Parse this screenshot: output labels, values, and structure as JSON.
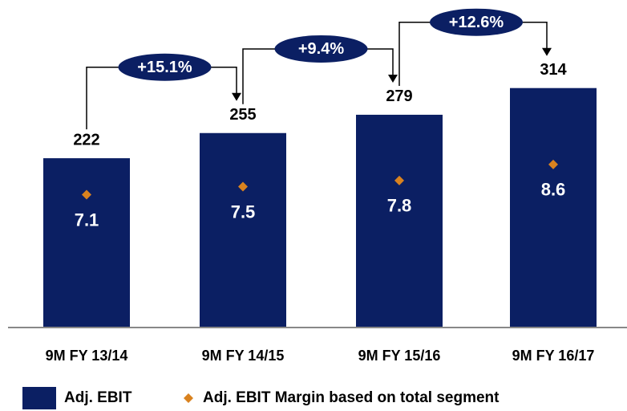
{
  "chart_data": {
    "type": "bar",
    "categories": [
      "9M FY 13/14",
      "9M FY 14/15",
      "9M FY 15/16",
      "9M FY 16/17"
    ],
    "series": [
      {
        "name": "Adj. EBIT",
        "color": "#0b1f63",
        "values": [
          222,
          255,
          279,
          314
        ]
      },
      {
        "name": "Adj. EBIT Margin based on total segment",
        "color": "#d9821f",
        "values": [
          7.1,
          7.5,
          7.8,
          8.6
        ],
        "axis": "y2"
      }
    ],
    "annotations": [
      "+15.1%",
      "+9.4%",
      "+12.6%"
    ],
    "ylim": [
      0,
      330
    ],
    "y2lim": [
      0.5,
      13
    ]
  }
}
